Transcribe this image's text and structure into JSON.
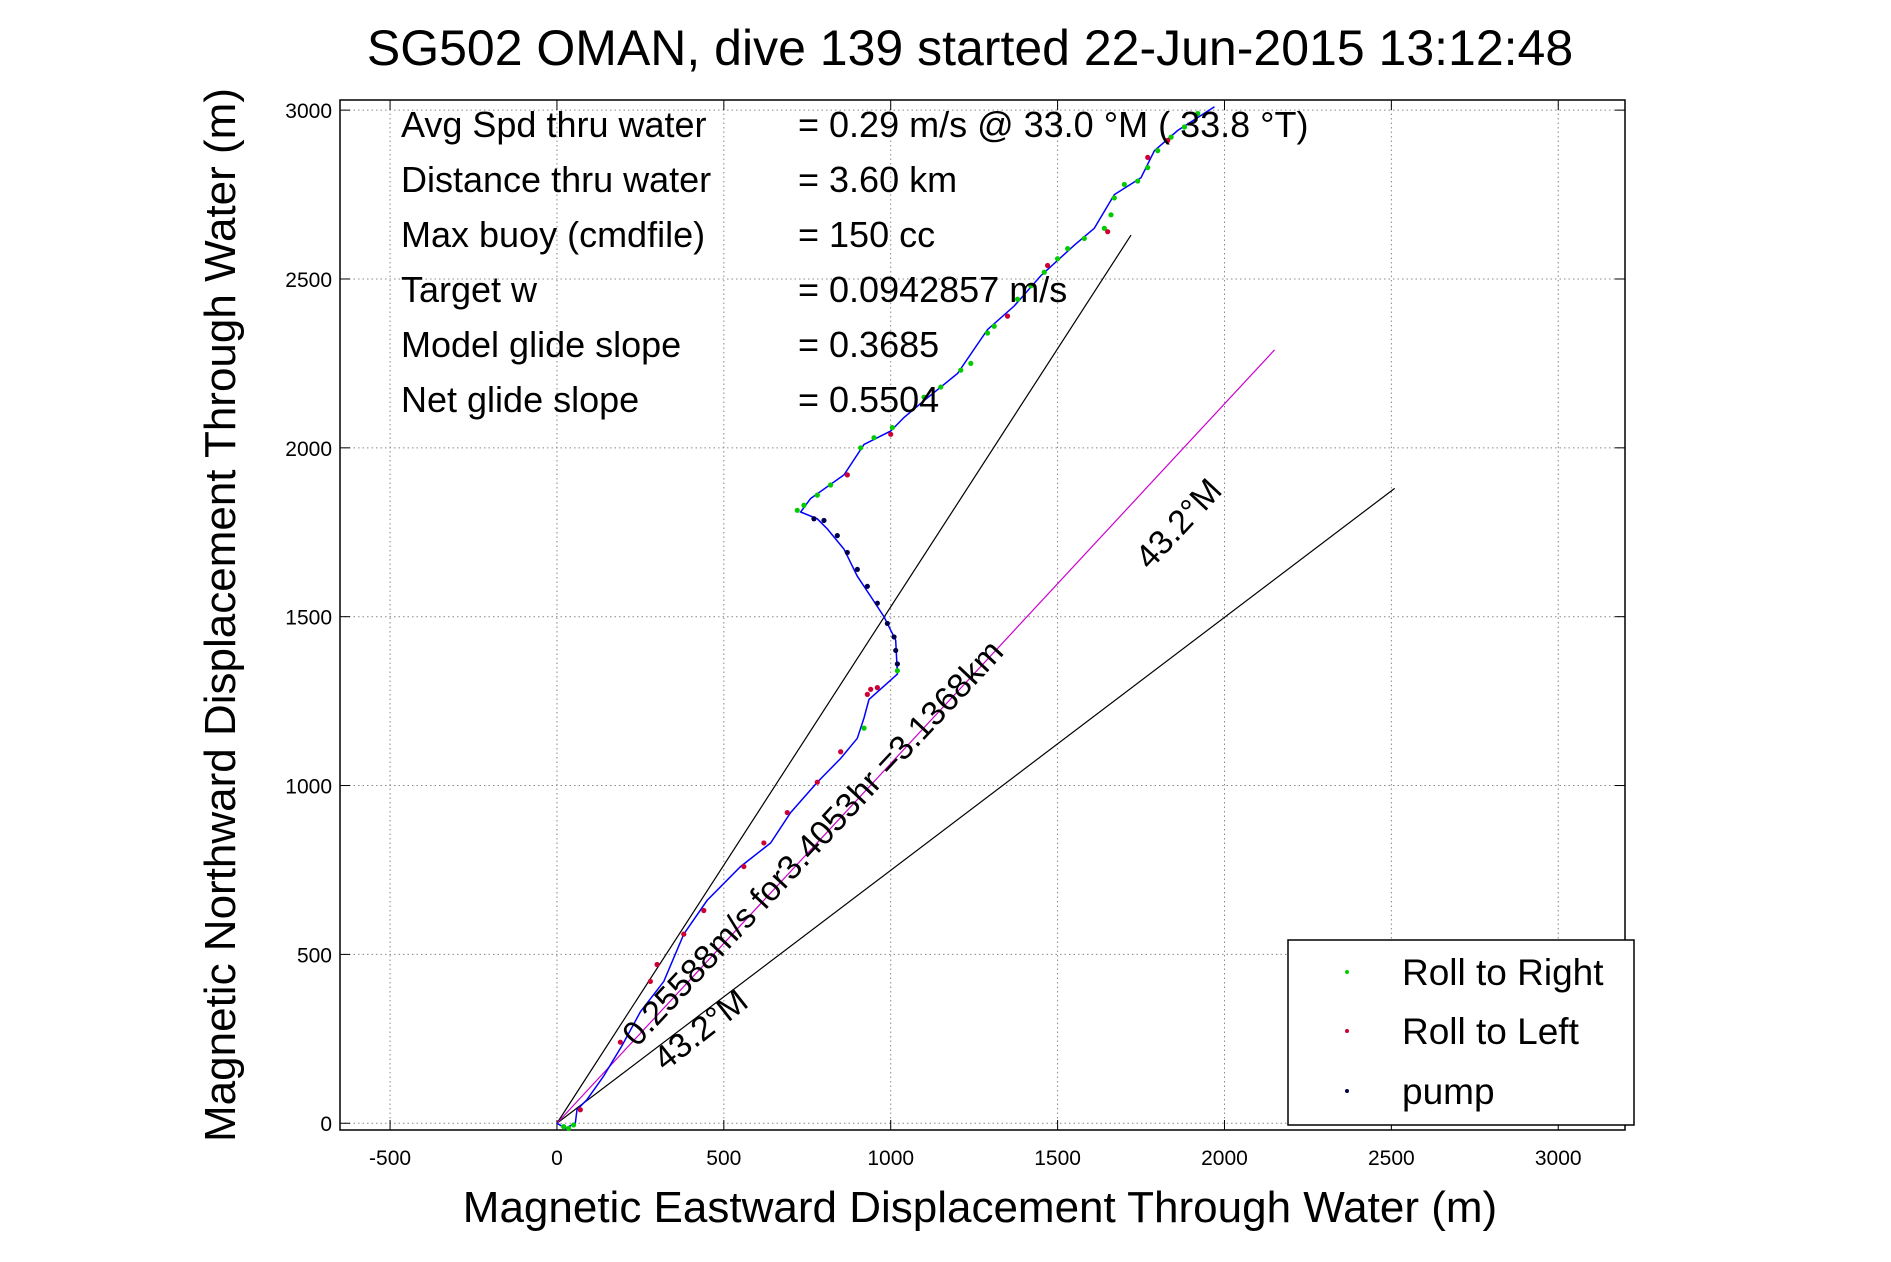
{
  "chart_data": {
    "type": "scatter",
    "title": "SG502 OMAN, dive 139 started 22-Jun-2015 13:12:48",
    "xlabel": "Magnetic Eastward Displacement Through Water (m)",
    "ylabel": "Magnetic Northward Displacement Through Water (m)",
    "xlim": [
      -650,
      3200
    ],
    "ylim": [
      -20,
      3030
    ],
    "xticks": [
      "-500",
      "0",
      "500",
      "1000",
      "1500",
      "2000",
      "2500",
      "3000"
    ],
    "yticks": [
      "0",
      "500",
      "1000",
      "1500",
      "2000",
      "2500",
      "3000"
    ],
    "grid": true,
    "legend_position": "bottom-right",
    "stats": [
      {
        "label": "Avg Spd thru water",
        "value": "=  0.29 m/s @  33.0 °M ( 33.8 °T)"
      },
      {
        "label": "Distance thru water",
        "value": "=  3.60 km"
      },
      {
        "label": "Max buoy (cmdfile)",
        "value": "= 150 cc"
      },
      {
        "label": "Target w",
        "value": "= 0.0942857 m/s"
      },
      {
        "label": "Model glide slope",
        "value": "= 0.3685"
      },
      {
        "label": "Net glide slope",
        "value": "= 0.5504"
      }
    ],
    "annotations": {
      "current": "0.25588m/s for3.4053hr =3.1368km",
      "heading_upper": "43.2°M",
      "heading_lower": "43.2°M"
    },
    "reference_lines": [
      {
        "name": "upper-bound",
        "from": [
          0,
          0
        ],
        "to": [
          1720,
          2630
        ],
        "color": "#000000"
      },
      {
        "name": "lower-bound",
        "from": [
          0,
          0
        ],
        "to": [
          2510,
          1880
        ],
        "color": "#000000"
      },
      {
        "name": "current-vector",
        "from": [
          0,
          0
        ],
        "to": [
          2150,
          2290
        ],
        "color": "#cc00cc"
      }
    ],
    "track": {
      "color": "#0000ff",
      "points": [
        [
          0,
          0
        ],
        [
          25,
          -15
        ],
        [
          55,
          0
        ],
        [
          60,
          40
        ],
        [
          90,
          70
        ],
        [
          140,
          140
        ],
        [
          195,
          230
        ],
        [
          250,
          330
        ],
        [
          320,
          420
        ],
        [
          380,
          560
        ],
        [
          450,
          660
        ],
        [
          550,
          760
        ],
        [
          640,
          830
        ],
        [
          700,
          920
        ],
        [
          780,
          1010
        ],
        [
          850,
          1080
        ],
        [
          900,
          1140
        ],
        [
          920,
          1200
        ],
        [
          935,
          1255
        ],
        [
          1020,
          1330
        ],
        [
          1015,
          1430
        ],
        [
          980,
          1500
        ],
        [
          940,
          1560
        ],
        [
          900,
          1620
        ],
        [
          860,
          1700
        ],
        [
          810,
          1760
        ],
        [
          780,
          1790
        ],
        [
          730,
          1810
        ],
        [
          760,
          1850
        ],
        [
          860,
          1920
        ],
        [
          920,
          2010
        ],
        [
          1000,
          2050
        ],
        [
          1040,
          2090
        ],
        [
          1100,
          2140
        ],
        [
          1200,
          2220
        ],
        [
          1290,
          2350
        ],
        [
          1370,
          2420
        ],
        [
          1450,
          2510
        ],
        [
          1550,
          2600
        ],
        [
          1610,
          2650
        ],
        [
          1670,
          2750
        ],
        [
          1750,
          2800
        ],
        [
          1790,
          2880
        ],
        [
          1860,
          2940
        ],
        [
          1970,
          3010
        ]
      ]
    },
    "series": [
      {
        "name": "Roll to Right",
        "color": "#00cc00",
        "points": [
          [
            20,
            -10
          ],
          [
            35,
            -15
          ],
          [
            50,
            -5
          ],
          [
            720,
            1815
          ],
          [
            740,
            1830
          ],
          [
            780,
            1860
          ],
          [
            820,
            1890
          ],
          [
            910,
            2000
          ],
          [
            950,
            2030
          ],
          [
            1005,
            2060
          ],
          [
            1100,
            2150
          ],
          [
            1150,
            2180
          ],
          [
            1210,
            2230
          ],
          [
            1240,
            2250
          ],
          [
            1290,
            2340
          ],
          [
            1310,
            2360
          ],
          [
            1380,
            2440
          ],
          [
            1420,
            2480
          ],
          [
            1460,
            2520
          ],
          [
            1500,
            2560
          ],
          [
            1530,
            2590
          ],
          [
            1580,
            2620
          ],
          [
            1640,
            2650
          ],
          [
            1660,
            2690
          ],
          [
            1670,
            2740
          ],
          [
            1700,
            2780
          ],
          [
            1740,
            2790
          ],
          [
            1770,
            2830
          ],
          [
            1800,
            2880
          ],
          [
            1840,
            2920
          ],
          [
            1880,
            2950
          ],
          [
            1920,
            2990
          ],
          [
            920,
            1170
          ],
          [
            1020,
            1340
          ]
        ]
      },
      {
        "name": "Roll to Left",
        "color": "#cc0033",
        "points": [
          [
            70,
            40
          ],
          [
            190,
            240
          ],
          [
            280,
            420
          ],
          [
            300,
            470
          ],
          [
            380,
            560
          ],
          [
            440,
            630
          ],
          [
            560,
            760
          ],
          [
            620,
            830
          ],
          [
            690,
            920
          ],
          [
            780,
            1010
          ],
          [
            850,
            1100
          ],
          [
            930,
            1270
          ],
          [
            940,
            1285
          ],
          [
            960,
            1290
          ],
          [
            1000,
            2040
          ],
          [
            1350,
            2390
          ],
          [
            1650,
            2640
          ],
          [
            1770,
            2860
          ],
          [
            1830,
            2910
          ],
          [
            870,
            1920
          ],
          [
            1470,
            2540
          ]
        ]
      },
      {
        "name": "pump",
        "color": "#00004c",
        "points": [
          [
            770,
            1790
          ],
          [
            800,
            1785
          ],
          [
            840,
            1740
          ],
          [
            870,
            1690
          ],
          [
            900,
            1640
          ],
          [
            930,
            1590
          ],
          [
            960,
            1540
          ],
          [
            990,
            1480
          ],
          [
            1010,
            1440
          ],
          [
            1015,
            1400
          ],
          [
            1020,
            1360
          ]
        ]
      }
    ]
  }
}
